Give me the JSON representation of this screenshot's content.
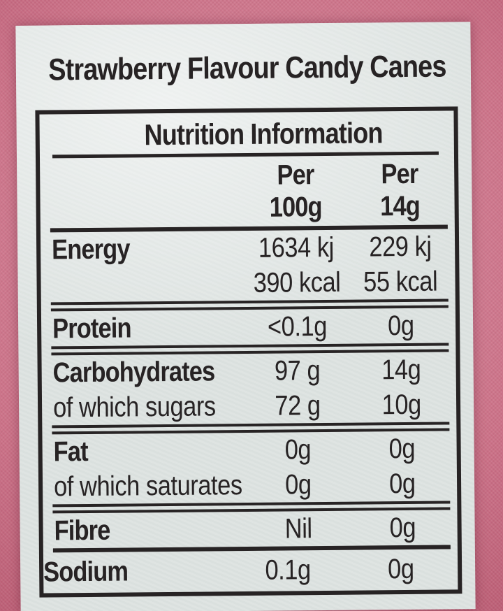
{
  "product_title": "Strawberry Flavour Candy Canes",
  "colors": {
    "packaging_pink": "#cc7389",
    "label_paper": "#dde3e1",
    "ink": "#272324"
  },
  "table": {
    "title": "Nutrition Information",
    "header": {
      "per_100g": [
        "Per",
        "100g"
      ],
      "per_14g": [
        "Per",
        "14g"
      ]
    },
    "sections": [
      {
        "rows": [
          {
            "label": "Energy",
            "strong": true,
            "per100g": "1634 kj",
            "per14g": "229 kj"
          },
          {
            "label": "",
            "strong": false,
            "per100g": "390 kcal",
            "per14g": "55 kcal"
          }
        ],
        "divider_after": "double"
      },
      {
        "rows": [
          {
            "label": "Protein",
            "strong": true,
            "per100g": "<0.1g",
            "per14g": "0g"
          }
        ],
        "divider_after": "double"
      },
      {
        "rows": [
          {
            "label": "Carbohydrates",
            "strong": true,
            "per100g": "97 g",
            "per14g": "14g"
          },
          {
            "label": "of which sugars",
            "strong": false,
            "per100g": "72 g",
            "per14g": "10g"
          }
        ],
        "divider_after": "double"
      },
      {
        "rows": [
          {
            "label": "Fat",
            "strong": true,
            "per100g": "0g",
            "per14g": "0g"
          },
          {
            "label": "of which saturates",
            "strong": false,
            "per100g": "0g",
            "per14g": "0g"
          }
        ],
        "divider_after": "double"
      },
      {
        "rows": [
          {
            "label": "Fibre",
            "strong": true,
            "per100g": "Nil",
            "per14g": "0g"
          }
        ],
        "divider_after": "single"
      },
      {
        "rows": [
          {
            "label": "Sodium",
            "strong": true,
            "per100g": "0.1g",
            "per14g": "0g"
          }
        ],
        "divider_after": null
      }
    ]
  }
}
